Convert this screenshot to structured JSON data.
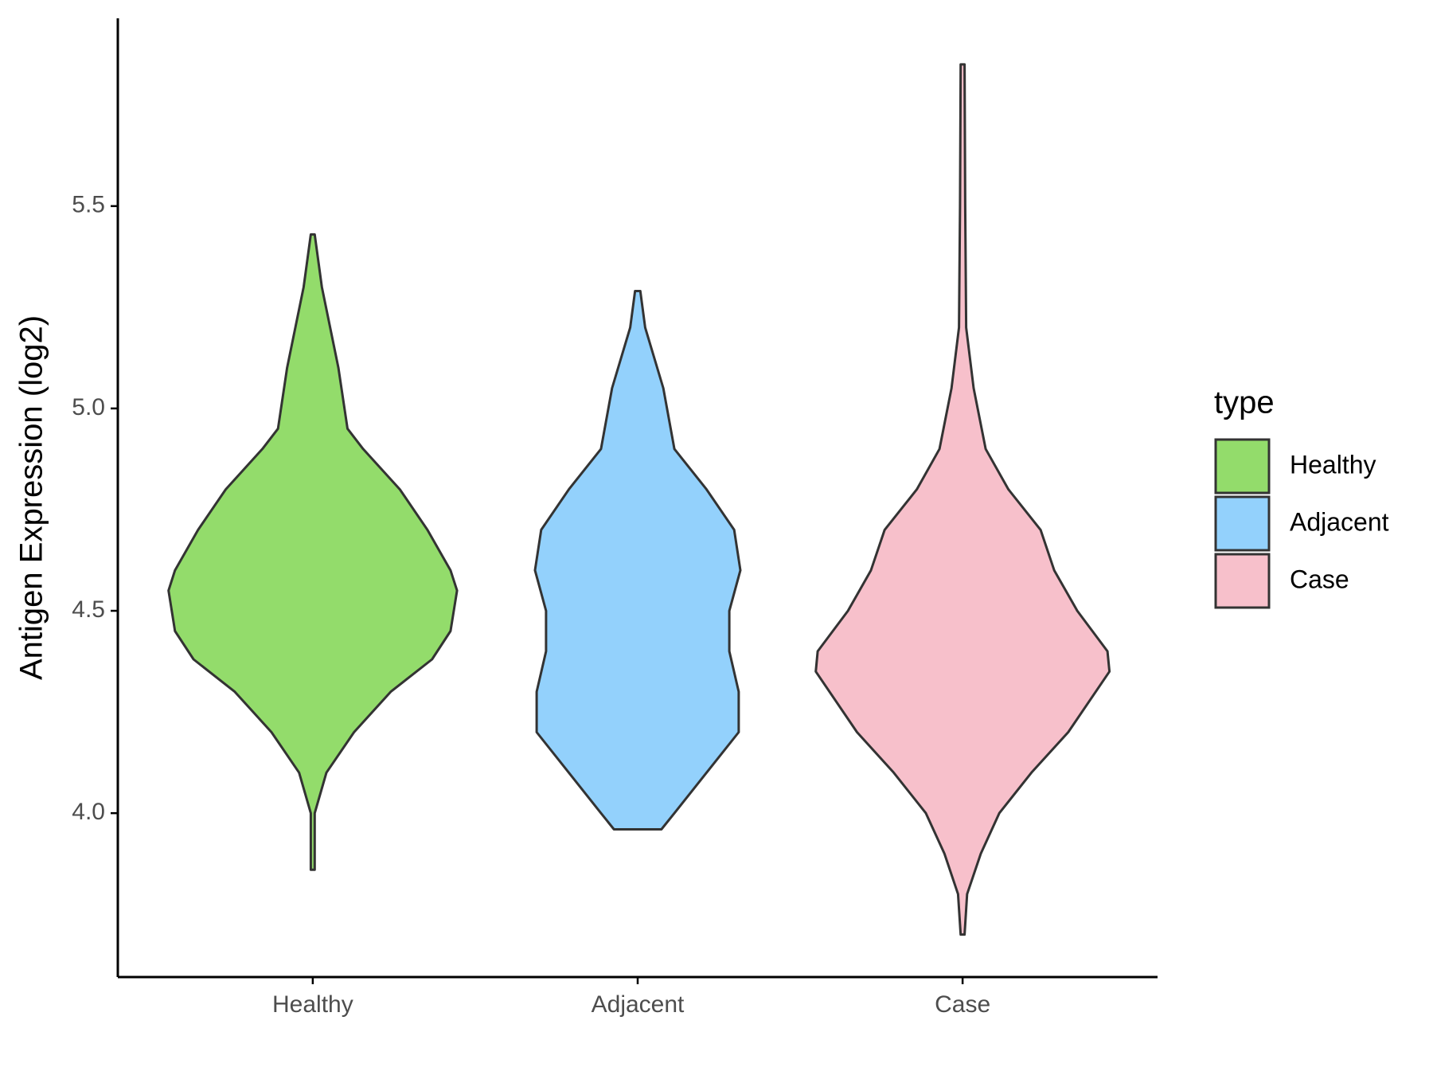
{
  "chart_data": {
    "type": "violin",
    "y_label": "Antigen Expression (log2)",
    "legend_title": "type",
    "categories": [
      "Healthy",
      "Adjacent",
      "Case"
    ],
    "series": [
      {
        "name": "Healthy",
        "color": "#93dc6b",
        "values": [
          5.43,
          5.3,
          5.1,
          4.95,
          4.9,
          4.8,
          4.7,
          4.6,
          4.55,
          4.45,
          4.38,
          4.3,
          4.2,
          4.1,
          4.0,
          3.86
        ],
        "widths": [
          0.006,
          0.028,
          0.079,
          0.107,
          0.155,
          0.268,
          0.353,
          0.424,
          0.444,
          0.424,
          0.367,
          0.24,
          0.127,
          0.042,
          0.006,
          0.006
        ]
      },
      {
        "name": "Adjacent",
        "color": "#93d1fc",
        "values": [
          5.29,
          5.2,
          5.05,
          4.9,
          4.8,
          4.7,
          4.6,
          4.5,
          4.4,
          4.3,
          4.2,
          4.1,
          4.0,
          3.96
        ],
        "widths": [
          0.008,
          0.023,
          0.079,
          0.113,
          0.212,
          0.297,
          0.316,
          0.282,
          0.282,
          0.311,
          0.311,
          0.212,
          0.113,
          0.073
        ]
      },
      {
        "name": "Case",
        "color": "#f7c0cb",
        "values": [
          5.85,
          5.5,
          5.2,
          5.05,
          4.9,
          4.8,
          4.7,
          4.6,
          4.5,
          4.4,
          4.35,
          4.2,
          4.1,
          4.0,
          3.9,
          3.8,
          3.7
        ],
        "widths": [
          0.006,
          0.008,
          0.011,
          0.034,
          0.071,
          0.141,
          0.24,
          0.282,
          0.353,
          0.446,
          0.452,
          0.325,
          0.212,
          0.113,
          0.056,
          0.014,
          0.006
        ]
      }
    ],
    "ylim": [
      3.595,
      5.964
    ],
    "yticks": [
      {
        "value": 4.0,
        "label": "4.0"
      },
      4.5,
      {
        "value": 5.0,
        "label": "5.0"
      },
      5.5
    ]
  }
}
